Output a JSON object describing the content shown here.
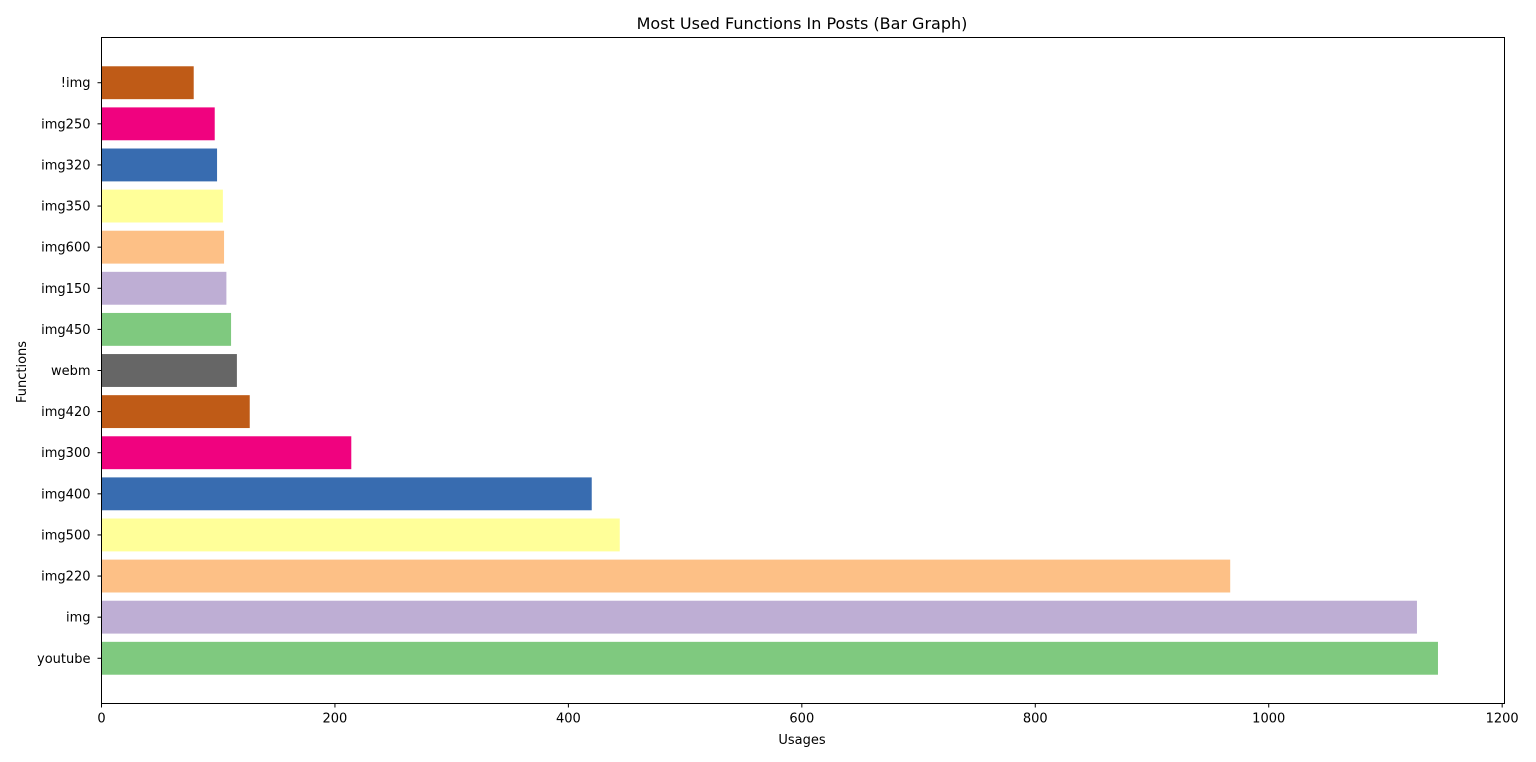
{
  "chart_data": {
    "type": "bar",
    "orientation": "horizontal",
    "title": "Most Used Functions In Posts (Bar Graph)",
    "xlabel": "Usages",
    "ylabel": "Functions",
    "xlim": [
      0,
      1202
    ],
    "xticks": [
      0,
      200,
      400,
      600,
      800,
      1000,
      1200
    ],
    "grid": false,
    "categories": [
      "youtube",
      "img",
      "img220",
      "img500",
      "img400",
      "img300",
      "img420",
      "webm",
      "img450",
      "img150",
      "img600",
      "img350",
      "img320",
      "img250",
      "!img"
    ],
    "values": [
      1145,
      1127,
      967,
      444,
      420,
      214,
      127,
      116,
      111,
      107,
      105,
      104,
      99,
      97,
      79
    ],
    "colors": [
      "#7fc97f",
      "#beaed4",
      "#fdc086",
      "#ffff99",
      "#386cb0",
      "#f0027f",
      "#bf5b17",
      "#666666",
      "#7fc97f",
      "#beaed4",
      "#fdc086",
      "#ffff99",
      "#386cb0",
      "#f0027f",
      "#bf5b17"
    ]
  }
}
